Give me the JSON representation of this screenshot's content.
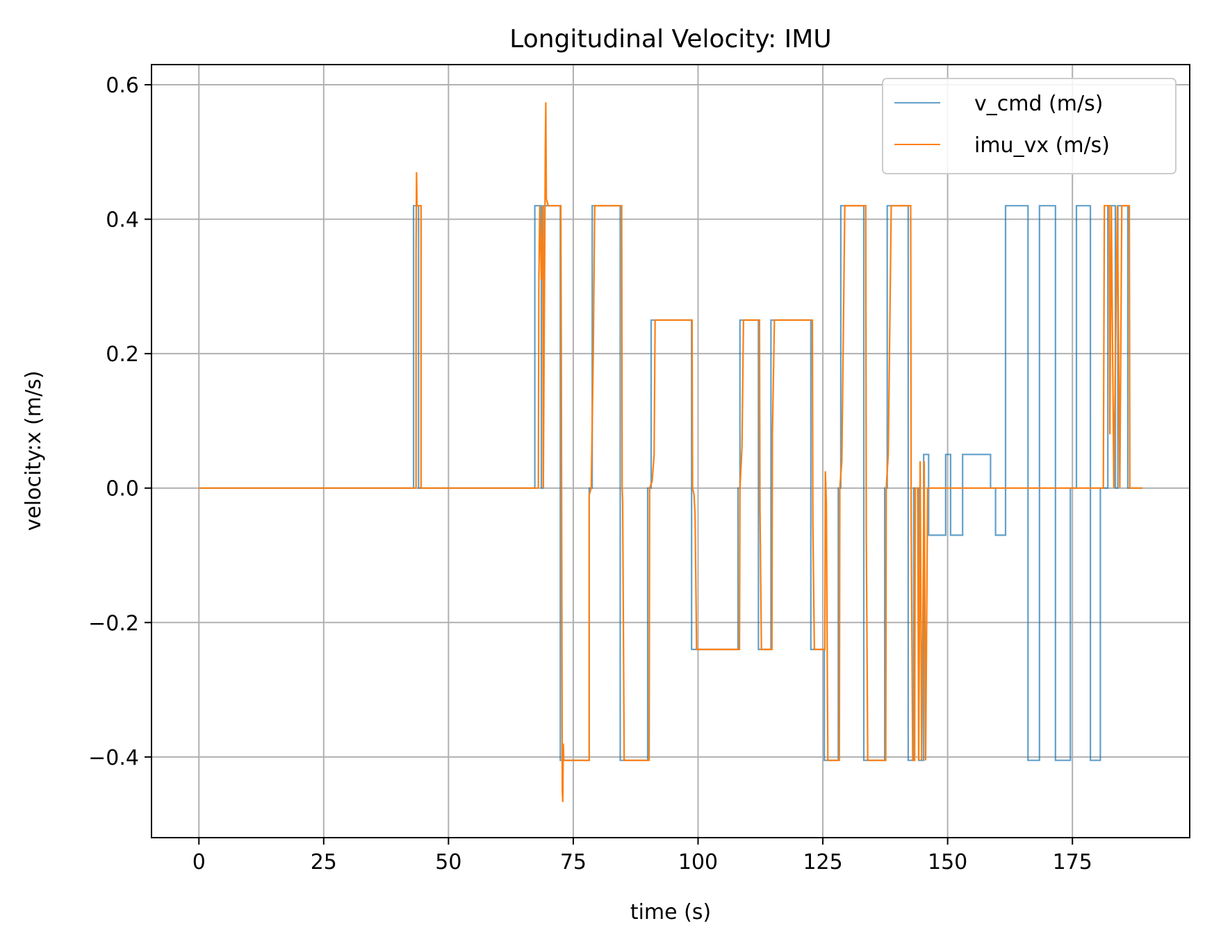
{
  "chart_data": {
    "type": "line",
    "title": "Longitudinal Velocity: IMU",
    "xlabel": "time (s)",
    "ylabel": "velocity:x (m/s)",
    "xlim": [
      -9.5,
      198.5
    ],
    "ylim": [
      -0.52,
      0.63
    ],
    "x_ticks": [
      0,
      25,
      50,
      75,
      100,
      125,
      150,
      175
    ],
    "x_tick_labels": [
      "0",
      "25",
      "50",
      "75",
      "100",
      "125",
      "150",
      "175"
    ],
    "y_ticks": [
      -0.4,
      -0.2,
      0.0,
      0.2,
      0.4,
      0.6
    ],
    "y_tick_labels": [
      "−0.4",
      "−0.2",
      "0.0",
      "0.2",
      "0.4",
      "0.6"
    ],
    "grid": true,
    "legend_position": "top-right",
    "series": [
      {
        "name": "v_cmd (m/s)",
        "color": "#1f77b4",
        "opacity": 0.7,
        "step": true,
        "points": [
          [
            0,
            0
          ],
          [
            43,
            0
          ],
          [
            43,
            0.42
          ],
          [
            44,
            0.42
          ],
          [
            44,
            0
          ],
          [
            67.3,
            0
          ],
          [
            67.3,
            0.42
          ],
          [
            68.6,
            0.42
          ],
          [
            68.6,
            0
          ],
          [
            69,
            0
          ],
          [
            69,
            0.42
          ],
          [
            72.4,
            0.42
          ],
          [
            72.4,
            -0.405
          ],
          [
            78.2,
            -0.405
          ],
          [
            78.2,
            0
          ],
          [
            78.8,
            0
          ],
          [
            78.8,
            0.42
          ],
          [
            84.4,
            0.42
          ],
          [
            84.4,
            -0.405
          ],
          [
            89.9,
            -0.405
          ],
          [
            89.9,
            0
          ],
          [
            90.6,
            0
          ],
          [
            90.6,
            0.25
          ],
          [
            98.7,
            0.25
          ],
          [
            98.7,
            -0.24
          ],
          [
            108,
            -0.24
          ],
          [
            108,
            0
          ],
          [
            108.4,
            0
          ],
          [
            108.4,
            0.25
          ],
          [
            112.1,
            0.25
          ],
          [
            112.1,
            -0.24
          ],
          [
            114.6,
            -0.24
          ],
          [
            114.6,
            0.25
          ],
          [
            122.6,
            0.25
          ],
          [
            122.6,
            -0.24
          ],
          [
            125.3,
            -0.24
          ],
          [
            125.3,
            -0.405
          ],
          [
            128.1,
            -0.405
          ],
          [
            128.1,
            0
          ],
          [
            128.6,
            0
          ],
          [
            128.6,
            0.42
          ],
          [
            133.2,
            0.42
          ],
          [
            133.2,
            -0.405
          ],
          [
            137.4,
            -0.405
          ],
          [
            137.4,
            0
          ],
          [
            137.9,
            0
          ],
          [
            137.9,
            0.42
          ],
          [
            142.1,
            0.42
          ],
          [
            142.1,
            -0.405
          ],
          [
            143.2,
            -0.405
          ],
          [
            143.2,
            0
          ],
          [
            144.2,
            0
          ],
          [
            144.2,
            -0.405
          ],
          [
            145.2,
            -0.405
          ],
          [
            145.2,
            0.05
          ],
          [
            146.2,
            0.05
          ],
          [
            146.2,
            -0.07
          ],
          [
            149.6,
            -0.07
          ],
          [
            149.6,
            0.05
          ],
          [
            150.6,
            0.05
          ],
          [
            150.6,
            -0.07
          ],
          [
            153,
            -0.07
          ],
          [
            153,
            0.05
          ],
          [
            158.6,
            0.05
          ],
          [
            158.6,
            0
          ],
          [
            159.6,
            0
          ],
          [
            159.6,
            -0.07
          ],
          [
            161.6,
            -0.07
          ],
          [
            161.6,
            0.42
          ],
          [
            166.1,
            0.42
          ],
          [
            166.1,
            -0.405
          ],
          [
            168.4,
            -0.405
          ],
          [
            168.4,
            0.42
          ],
          [
            171.6,
            0.42
          ],
          [
            171.6,
            -0.405
          ],
          [
            174.6,
            -0.405
          ],
          [
            174.6,
            0
          ],
          [
            175.8,
            0
          ],
          [
            175.8,
            0.42
          ],
          [
            178.6,
            0.42
          ],
          [
            178.6,
            -0.405
          ],
          [
            180.6,
            -0.405
          ],
          [
            180.6,
            0
          ],
          [
            182.1,
            0
          ],
          [
            182.1,
            0.42
          ],
          [
            183.6,
            0.42
          ],
          [
            183.6,
            0
          ],
          [
            184.1,
            0
          ],
          [
            184.1,
            0.42
          ],
          [
            186.1,
            0.42
          ],
          [
            186.1,
            0
          ],
          [
            189,
            0
          ]
        ]
      },
      {
        "name": "imu_vx (m/s)",
        "color": "#ff7f0e",
        "opacity": 1,
        "step": false,
        "points": [
          [
            0,
            0
          ],
          [
            43.5,
            0
          ],
          [
            43.5,
            0.35
          ],
          [
            43.6,
            0.47
          ],
          [
            43.7,
            0.42
          ],
          [
            44.5,
            0.42
          ],
          [
            44.5,
            0
          ],
          [
            68,
            0
          ],
          [
            68.1,
            0.31
          ],
          [
            68.3,
            0.42
          ],
          [
            68.6,
            0.31
          ],
          [
            68.9,
            0.42
          ],
          [
            69,
            0
          ],
          [
            69.4,
            0.5
          ],
          [
            69.5,
            0.574
          ],
          [
            69.6,
            0.43
          ],
          [
            70,
            0.42
          ],
          [
            72.5,
            0.42
          ],
          [
            72.6,
            0.2
          ],
          [
            72.8,
            -0.45
          ],
          [
            72.9,
            -0.467
          ],
          [
            73,
            -0.38
          ],
          [
            73.1,
            -0.405
          ],
          [
            78.2,
            -0.405
          ],
          [
            78.2,
            -0.01
          ],
          [
            78.6,
            0
          ],
          [
            79,
            0.2
          ],
          [
            79.3,
            0.42
          ],
          [
            84.7,
            0.42
          ],
          [
            84.8,
            0
          ],
          [
            84.9,
            -0.02
          ],
          [
            85.2,
            -0.405
          ],
          [
            90.2,
            -0.405
          ],
          [
            90.3,
            0
          ],
          [
            90.8,
            0.01
          ],
          [
            91.2,
            0.05
          ],
          [
            91.4,
            0.25
          ],
          [
            98.8,
            0.25
          ],
          [
            98.9,
            0
          ],
          [
            99.2,
            -0.01
          ],
          [
            99.4,
            -0.04
          ],
          [
            99.7,
            -0.24
          ],
          [
            108.3,
            -0.24
          ],
          [
            108.4,
            0
          ],
          [
            108.8,
            0.06
          ],
          [
            109.1,
            0.25
          ],
          [
            112.3,
            0.25
          ],
          [
            112.4,
            -0.03
          ],
          [
            112.7,
            -0.24
          ],
          [
            114.8,
            -0.24
          ],
          [
            114.9,
            0.08
          ],
          [
            115.3,
            0.25
          ],
          [
            122.9,
            0.25
          ],
          [
            123,
            -0.05
          ],
          [
            123.3,
            -0.24
          ],
          [
            125.4,
            -0.24
          ],
          [
            125.5,
            0.025
          ],
          [
            125.7,
            -0.02
          ],
          [
            126,
            -0.405
          ],
          [
            128.3,
            -0.405
          ],
          [
            128.4,
            0
          ],
          [
            128.8,
            0.04
          ],
          [
            129.4,
            0.42
          ],
          [
            133.6,
            0.42
          ],
          [
            133.7,
            -0.07
          ],
          [
            134,
            -0.405
          ],
          [
            137.6,
            -0.405
          ],
          [
            137.7,
            0
          ],
          [
            138.1,
            0.05
          ],
          [
            138.7,
            0.42
          ],
          [
            142.6,
            0.42
          ],
          [
            142.7,
            -0.05
          ],
          [
            143,
            -0.405
          ],
          [
            143.4,
            -0.405
          ],
          [
            143.5,
            0
          ],
          [
            144,
            0
          ],
          [
            144.2,
            -0.405
          ],
          [
            144.5,
            0.04
          ],
          [
            144.8,
            -0.405
          ],
          [
            145.3,
            0.04
          ],
          [
            145.6,
            -0.405
          ],
          [
            146,
            0
          ],
          [
            181.2,
            0
          ],
          [
            181.4,
            0.42
          ],
          [
            182.4,
            0.42
          ],
          [
            182.5,
            0.08
          ],
          [
            182.8,
            0.42
          ],
          [
            183.3,
            0
          ],
          [
            184,
            0.42
          ],
          [
            184.5,
            0
          ],
          [
            184.9,
            0.42
          ],
          [
            186.4,
            0.42
          ],
          [
            186.5,
            0
          ],
          [
            189,
            0
          ]
        ]
      }
    ]
  }
}
